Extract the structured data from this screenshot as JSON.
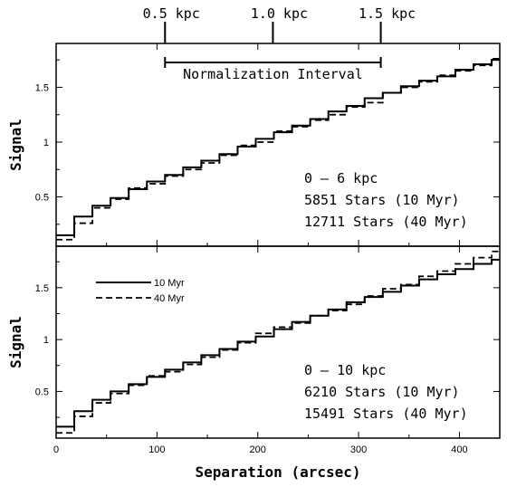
{
  "top_axis": {
    "ticks": [
      {
        "label": "0.5 kpc",
        "x": 108
      },
      {
        "label": "1.0 kpc",
        "x": 215
      },
      {
        "label": "1.5 kpc",
        "x": 322
      }
    ]
  },
  "normalization": {
    "label": "Normalization Interval",
    "x_start": 108,
    "x_end": 322
  },
  "chart_data": [
    {
      "type": "line",
      "ylabel": "Signal",
      "xlim": [
        0,
        440
      ],
      "ylim": [
        0.05,
        1.9
      ],
      "x_ticks": [
        0,
        100,
        200,
        300,
        400
      ],
      "y_ticks": [
        0.5,
        1,
        1.5
      ],
      "y_tick_labels": [
        "0.5",
        "1",
        "1.5"
      ],
      "annotation": [
        "0 – 6 kpc",
        "5851 Stars (10 Myr)",
        "12711 Stars (40 Myr)"
      ],
      "bin_edges": [
        0,
        18,
        36,
        54,
        72,
        90,
        108,
        126,
        144,
        162,
        180,
        198,
        216,
        234,
        252,
        270,
        288,
        306,
        324,
        342,
        360,
        378,
        396,
        414,
        432,
        440
      ],
      "series": [
        {
          "name": "10 Myr",
          "style": "solid",
          "values": [
            0.15,
            0.32,
            0.42,
            0.49,
            0.57,
            0.64,
            0.7,
            0.77,
            0.83,
            0.89,
            0.96,
            1.03,
            1.09,
            1.15,
            1.21,
            1.28,
            1.33,
            1.4,
            1.45,
            1.51,
            1.56,
            1.6,
            1.66,
            1.71,
            1.75
          ]
        },
        {
          "name": "40 Myr",
          "style": "dashed",
          "values": [
            0.11,
            0.26,
            0.4,
            0.48,
            0.58,
            0.62,
            0.69,
            0.75,
            0.81,
            0.88,
            0.97,
            1.0,
            1.1,
            1.14,
            1.2,
            1.25,
            1.32,
            1.36,
            1.45,
            1.5,
            1.55,
            1.61,
            1.65,
            1.7,
            1.76
          ]
        }
      ]
    },
    {
      "type": "line",
      "ylabel": "Signal",
      "xlabel": "Separation (arcsec)",
      "xlim": [
        0,
        440
      ],
      "ylim": [
        0.05,
        1.9
      ],
      "x_ticks": [
        0,
        100,
        200,
        300,
        400
      ],
      "x_tick_labels": [
        "0",
        "100",
        "200",
        "300",
        "400"
      ],
      "y_ticks": [
        0.5,
        1,
        1.5
      ],
      "y_tick_labels": [
        "0.5",
        "1",
        "1.5"
      ],
      "annotation": [
        "0 – 10 kpc",
        "6210 Stars (10 Myr)",
        "15491 Stars (40 Myr)"
      ],
      "legend": {
        "position": "top-left"
      },
      "bin_edges": [
        0,
        18,
        36,
        54,
        72,
        90,
        108,
        126,
        144,
        162,
        180,
        198,
        216,
        234,
        252,
        270,
        288,
        306,
        324,
        342,
        360,
        378,
        396,
        414,
        432,
        440
      ],
      "series": [
        {
          "name": "10 Myr",
          "style": "solid",
          "values": [
            0.16,
            0.31,
            0.42,
            0.5,
            0.57,
            0.64,
            0.71,
            0.78,
            0.85,
            0.91,
            0.98,
            1.03,
            1.1,
            1.17,
            1.23,
            1.29,
            1.36,
            1.41,
            1.46,
            1.52,
            1.58,
            1.63,
            1.68,
            1.73,
            1.77
          ]
        },
        {
          "name": "40 Myr",
          "style": "dashed",
          "values": [
            0.1,
            0.26,
            0.39,
            0.48,
            0.56,
            0.65,
            0.69,
            0.76,
            0.83,
            0.9,
            0.97,
            1.06,
            1.12,
            1.16,
            1.23,
            1.28,
            1.34,
            1.42,
            1.49,
            1.53,
            1.61,
            1.66,
            1.73,
            1.79,
            1.85
          ]
        }
      ]
    }
  ]
}
